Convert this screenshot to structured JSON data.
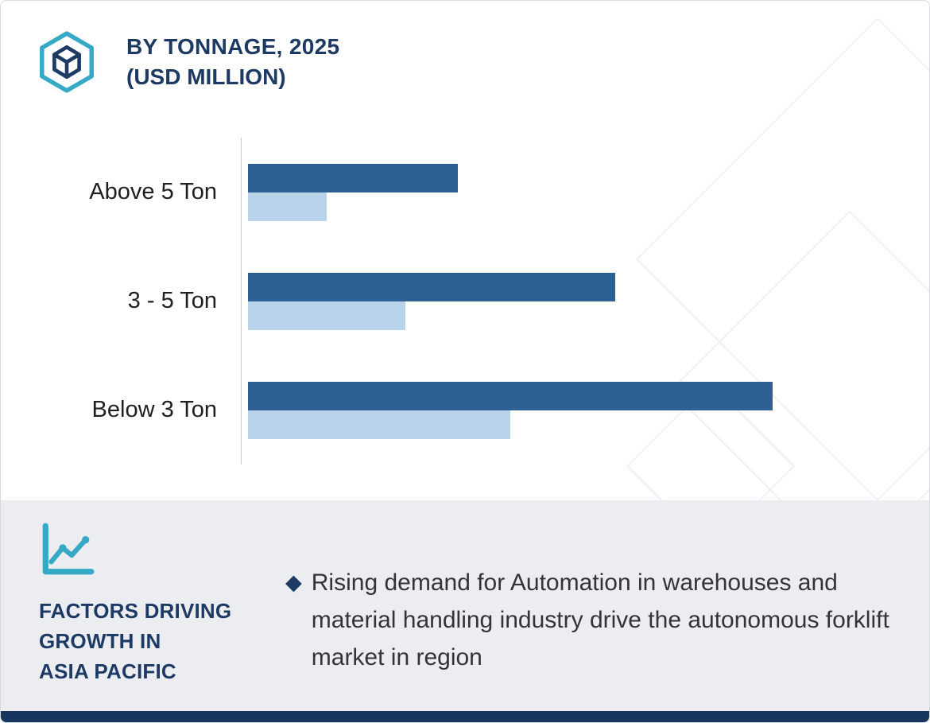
{
  "header": {
    "title": "BY TONNAGE, 2025",
    "subtitle": "(USD MILLION)"
  },
  "chart_data": {
    "type": "bar",
    "orientation": "horizontal",
    "title": "BY TONNAGE, 2025 (USD MILLION)",
    "xlabel": "",
    "ylabel": "",
    "categories": [
      "Above 5 Ton",
      "3 - 5 Ton",
      "Below 3 Ton"
    ],
    "series": [
      {
        "name": "dark-blue",
        "color": "#2e6093",
        "values": [
          40,
          70,
          100
        ]
      },
      {
        "name": "light-blue",
        "color": "#b9d3eb",
        "values": [
          15,
          30,
          50
        ]
      }
    ],
    "xlim": [
      0,
      105
    ],
    "grid": false,
    "legend": "none",
    "value_note": "axis unlabeled; values estimated in relative units (longest bar = 100)"
  },
  "footer": {
    "heading_lines": [
      "FACTORS DRIVING",
      "GROWTH IN",
      "ASIA PACIFIC"
    ],
    "bullet_marker": "◆",
    "bullet": "Rising demand for Automation in warehouses and material handling industry drive the autonomous forklift market in region"
  },
  "colors": {
    "navy": "#1d3a64",
    "teal": "#35a9c6",
    "bar_dark": "#2e6093",
    "bar_light": "#b9d3eb",
    "footer_bg": "#ebedf0",
    "bottom_strip": "#16365e"
  }
}
